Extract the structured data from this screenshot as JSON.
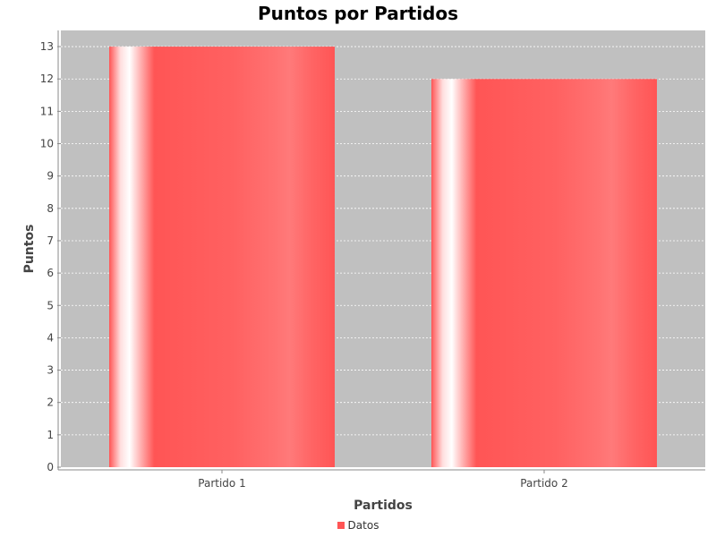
{
  "chart_data": {
    "type": "bar",
    "title": "Puntos por Partidos",
    "xlabel": "Partidos",
    "ylabel": "Puntos",
    "categories": [
      "Partido 1",
      "Partido 2"
    ],
    "series": [
      {
        "name": "Datos",
        "values": [
          13,
          12
        ]
      }
    ],
    "ylim": [
      0,
      13.5
    ],
    "yticks": [
      0,
      1,
      2,
      3,
      4,
      5,
      6,
      7,
      8,
      9,
      10,
      11,
      12,
      13
    ],
    "grid": true,
    "legend_position": "bottom",
    "colors": {
      "bar": "#ff5555",
      "plot_background": "#c0c0c0",
      "gridline": "#ffffff"
    }
  }
}
